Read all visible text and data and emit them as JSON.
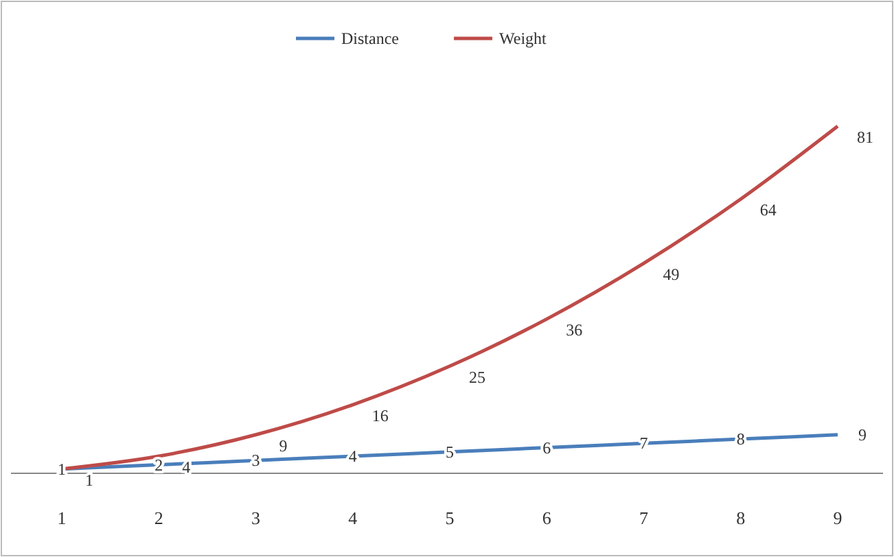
{
  "chart_data": {
    "type": "line",
    "categories": [
      "1",
      "2",
      "3",
      "4",
      "5",
      "6",
      "7",
      "8",
      "9"
    ],
    "series": [
      {
        "name": "Distance",
        "color": "#4a7ebb",
        "values": [
          1,
          2,
          3,
          4,
          5,
          6,
          7,
          8,
          9
        ]
      },
      {
        "name": "Weight",
        "color": "#be4b48",
        "values": [
          1,
          4,
          9,
          16,
          25,
          36,
          49,
          64,
          81
        ]
      }
    ],
    "data_labels": true,
    "legend": "top",
    "grid": false,
    "marker": "none",
    "tick_labels": "x"
  }
}
